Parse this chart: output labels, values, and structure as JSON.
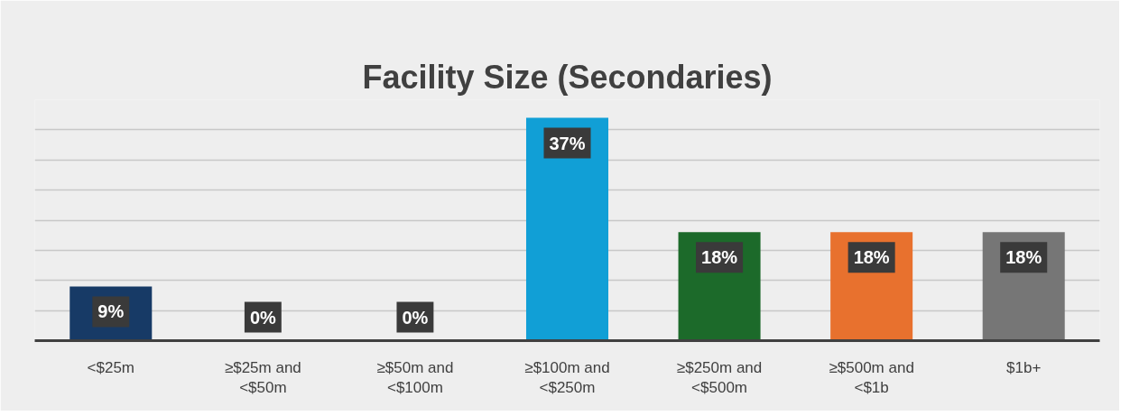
{
  "chart_data": {
    "type": "bar",
    "title": "Facility Size (Secondaries)",
    "categories": [
      "<$25m",
      "≥$25m and <$50m",
      "≥$50m and <$100m",
      "≥$100m and <$250m",
      "≥$250m and <$500m",
      "≥$500m and <$1b",
      "$1b+"
    ],
    "values": [
      9,
      0,
      0,
      37,
      18,
      18,
      18
    ],
    "colors": [
      "#173a66",
      "#173a66",
      "#173a66",
      "#119fd6",
      "#1c6a2a",
      "#e8712e",
      "#767676"
    ],
    "value_labels": [
      "9%",
      "0%",
      "0%",
      "37%",
      "18%",
      "18%",
      "18%"
    ],
    "ylim": [
      0,
      40
    ],
    "yticks": [
      {
        "value": 0,
        "label": null
      },
      {
        "value": 5,
        "label": null
      },
      {
        "value": 10,
        "label": null
      },
      {
        "value": 15,
        "label": null
      },
      {
        "value": 20,
        "label": null
      },
      {
        "value": 25,
        "label": null
      },
      {
        "value": 30,
        "label": null
      },
      {
        "value": 35,
        "label": null
      },
      {
        "value": 40,
        "label": null
      }
    ],
    "grid": "y",
    "tick_labels": "x"
  }
}
